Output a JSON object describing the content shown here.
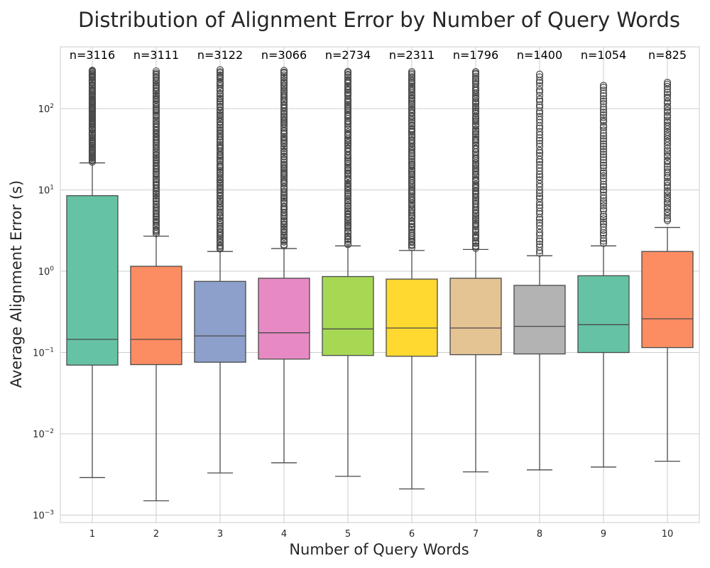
{
  "chart_data": {
    "type": "box",
    "title": "Distribution of Alignment Error by Number of Query Words",
    "xlabel": "Number of Query Words",
    "ylabel": "Average Alignment Error (s)",
    "yscale": "log",
    "ylim": [
      0.0008,
      400
    ],
    "grid": true,
    "categories": [
      "1",
      "2",
      "3",
      "4",
      "5",
      "6",
      "7",
      "8",
      "9",
      "10"
    ],
    "yticks": [
      {
        "base": "10",
        "exp": "−3",
        "value": 0.001
      },
      {
        "base": "10",
        "exp": "−2",
        "value": 0.01
      },
      {
        "base": "10",
        "exp": "−1",
        "value": 0.1
      },
      {
        "base": "10",
        "exp": "0",
        "value": 1
      },
      {
        "base": "10",
        "exp": "1",
        "value": 10
      },
      {
        "base": "10",
        "exp": "2",
        "value": 100
      }
    ],
    "counts": [
      "n=3116",
      "n=3111",
      "n=3122",
      "n=3066",
      "n=2734",
      "n=2311",
      "n=1796",
      "n=1400",
      "n=1054",
      "n=825"
    ],
    "colors": [
      "#66c2a5",
      "#fc8d62",
      "#8da0cb",
      "#e78ac3",
      "#a6d854",
      "#ffd92f",
      "#e5c494",
      "#b3b3b3",
      "#66c2a5",
      "#fc8d62"
    ],
    "boxes": [
      {
        "category": "1",
        "whisker_low": 0.0029,
        "q1": 0.07,
        "median": 0.145,
        "q3": 8.5,
        "whisker_high": 21.5,
        "flier_min": 22,
        "flier_max": 300
      },
      {
        "category": "2",
        "whisker_low": 0.0015,
        "q1": 0.071,
        "median": 0.145,
        "q3": 1.15,
        "whisker_high": 2.7,
        "flier_min": 2.9,
        "flier_max": 290
      },
      {
        "category": "3",
        "whisker_low": 0.0033,
        "q1": 0.076,
        "median": 0.16,
        "q3": 0.75,
        "whisker_high": 1.75,
        "flier_min": 1.85,
        "flier_max": 300
      },
      {
        "category": "4",
        "whisker_low": 0.0044,
        "q1": 0.083,
        "median": 0.175,
        "q3": 0.82,
        "whisker_high": 1.9,
        "flier_min": 2.05,
        "flier_max": 295
      },
      {
        "category": "5",
        "whisker_low": 0.003,
        "q1": 0.092,
        "median": 0.195,
        "q3": 0.86,
        "whisker_high": 2.05,
        "flier_min": 2.1,
        "flier_max": 290
      },
      {
        "category": "6",
        "whisker_low": 0.0021,
        "q1": 0.09,
        "median": 0.2,
        "q3": 0.8,
        "whisker_high": 1.8,
        "flier_min": 1.95,
        "flier_max": 285
      },
      {
        "category": "7",
        "whisker_low": 0.0034,
        "q1": 0.094,
        "median": 0.2,
        "q3": 0.82,
        "whisker_high": 1.85,
        "flier_min": 1.9,
        "flier_max": 285
      },
      {
        "category": "8",
        "whisker_low": 0.0036,
        "q1": 0.096,
        "median": 0.21,
        "q3": 0.67,
        "whisker_high": 1.55,
        "flier_min": 1.65,
        "flier_max": 265
      },
      {
        "category": "9",
        "whisker_low": 0.0039,
        "q1": 0.1,
        "median": 0.22,
        "q3": 0.88,
        "whisker_high": 2.05,
        "flier_min": 2.2,
        "flier_max": 195
      },
      {
        "category": "10",
        "whisker_low": 0.0046,
        "q1": 0.115,
        "median": 0.26,
        "q3": 1.75,
        "whisker_high": 3.45,
        "flier_min": 4.2,
        "flier_max": 210
      }
    ]
  }
}
